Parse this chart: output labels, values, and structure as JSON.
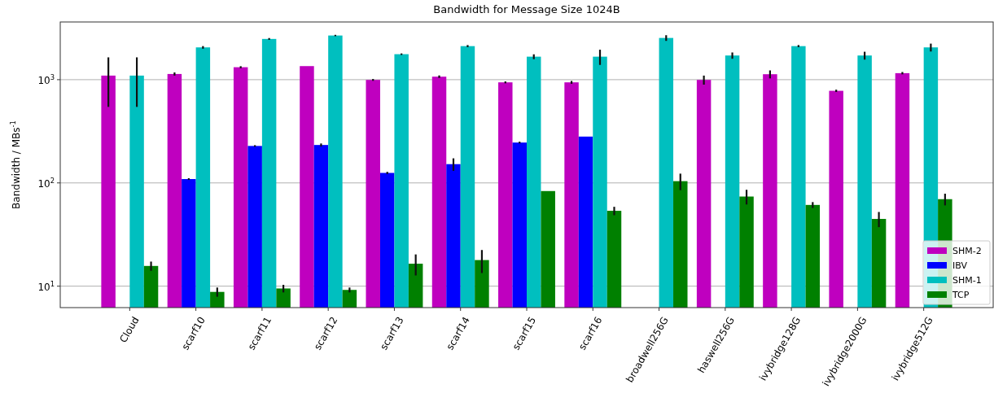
{
  "chart_data": {
    "type": "bar",
    "title": "Bandwidth for Message Size 1024B",
    "ylabel": "Bandwidth / MBs$^{-1}$",
    "categories": [
      "Cloud",
      "scarf10",
      "scarf11",
      "scarf12",
      "scarf13",
      "scarf14",
      "scarf15",
      "scarf16",
      "broadwell256G",
      "haswell256G",
      "ivybridge128G",
      "ivybridge2000G",
      "ivybridge512G"
    ],
    "series": [
      {
        "name": "SHM-2",
        "color": "#bf00bf",
        "values": [
          1095,
          1135,
          1320,
          1353,
          995,
          1069,
          942,
          942,
          null,
          995,
          1129,
          780,
          1156
        ],
        "errors": [
          550,
          40,
          30,
          null,
          20,
          30,
          20,
          30,
          null,
          100,
          100,
          20,
          30
        ]
      },
      {
        "name": "IBV",
        "color": "#0000ff",
        "values": [
          null,
          109,
          228,
          233,
          125,
          152,
          246,
          281,
          null,
          null,
          null,
          null,
          null
        ],
        "errors": [
          null,
          2,
          4,
          8,
          3,
          21,
          5,
          null,
          null,
          null,
          null,
          null,
          null
        ]
      },
      {
        "name": "SHM-1",
        "color": "#00bfbf",
        "values": [
          1095,
          2054,
          2480,
          2677,
          1765,
          2113,
          1670,
          1670,
          2535,
          1714,
          2113,
          1714,
          2054
        ],
        "errors": [
          550,
          60,
          50,
          40,
          30,
          50,
          90,
          280,
          160,
          120,
          50,
          150,
          180
        ]
      },
      {
        "name": "TCP",
        "color": "#008000",
        "values": [
          15.7,
          8.8,
          9.5,
          9.2,
          16.5,
          17.9,
          83.4,
          53.7,
          104,
          73.8,
          61.2,
          44.8,
          69.6
        ],
        "errors": [
          1.6,
          0.9,
          0.8,
          0.5,
          3.8,
          4.5,
          null,
          5,
          19,
          12,
          4,
          7.5,
          9
        ]
      }
    ],
    "log": "y",
    "ylim": [
      6.2,
      3620
    ],
    "yticks": [
      {
        "value": 10,
        "label": "10$^{1}$"
      },
      {
        "value": 100,
        "label": "10$^{2}$"
      },
      {
        "value": 1000,
        "label": "10$^{3}$"
      }
    ],
    "grid": "y",
    "legend": "bottom right"
  }
}
